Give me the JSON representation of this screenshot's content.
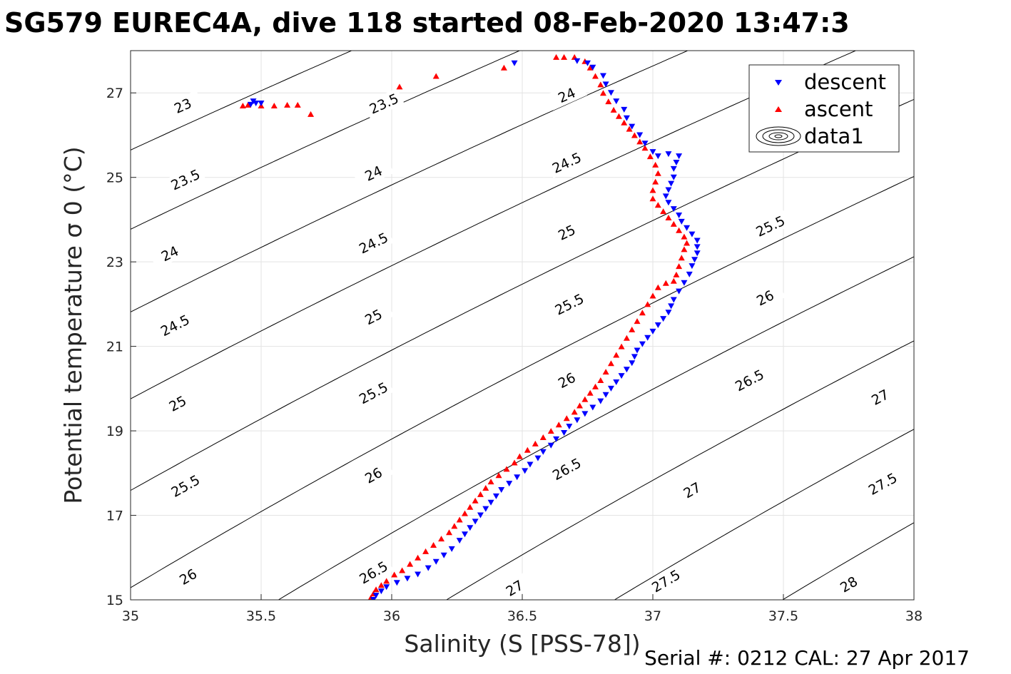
{
  "title": "SG579 EUREC4A, dive 118 started 08-Feb-2020 13:47:3",
  "footer": "Serial #: 0212  CAL: 27 Apr 2017",
  "chart_data": {
    "type": "scatter",
    "xlabel": "Salinity (S [PSS-78])",
    "ylabel": "Potential temperature σ 0 (°C)",
    "xlim": [
      35,
      38
    ],
    "ylim": [
      15,
      28
    ],
    "xticks": [
      35,
      35.5,
      36,
      36.5,
      37,
      37.5,
      38
    ],
    "yticks": [
      15,
      17,
      19,
      21,
      23,
      25,
      27
    ],
    "xtick_labels": [
      "35",
      "35.5",
      "36",
      "36.5",
      "37",
      "37.5",
      "38"
    ],
    "ytick_labels": [
      "15",
      "17",
      "19",
      "21",
      "23",
      "25",
      "27"
    ],
    "grid": true,
    "legend_position": "top-right",
    "legend": [
      "descent",
      "ascent",
      "data1"
    ],
    "colors": {
      "descent": "#0000ff",
      "ascent": "#ff0000",
      "contour": "#000000"
    },
    "contours": {
      "levels": [
        23,
        23.5,
        24,
        24.5,
        25,
        25.5,
        26,
        26.5,
        27,
        27.5,
        28
      ],
      "labels": [
        {
          "text": "23",
          "s": 35.2,
          "t": 26.7
        },
        {
          "text": "23.5",
          "s": 35.21,
          "t": 24.95
        },
        {
          "text": "24",
          "s": 35.15,
          "t": 23.2
        },
        {
          "text": "24.5",
          "s": 35.17,
          "t": 21.5
        },
        {
          "text": "25",
          "s": 35.18,
          "t": 19.65
        },
        {
          "text": "25.5",
          "s": 35.21,
          "t": 17.7
        },
        {
          "text": "26",
          "s": 35.22,
          "t": 15.55
        },
        {
          "text": "23.5",
          "s": 35.97,
          "t": 26.75
        },
        {
          "text": "24",
          "s": 35.93,
          "t": 25.1
        },
        {
          "text": "24.5",
          "s": 35.93,
          "t": 23.45
        },
        {
          "text": "25",
          "s": 35.93,
          "t": 21.7
        },
        {
          "text": "25.5",
          "s": 35.93,
          "t": 19.9
        },
        {
          "text": "26",
          "s": 35.93,
          "t": 17.95
        },
        {
          "text": "26.5",
          "s": 35.93,
          "t": 15.65
        },
        {
          "text": "24",
          "s": 36.67,
          "t": 26.95
        },
        {
          "text": "24.5",
          "s": 36.67,
          "t": 25.35
        },
        {
          "text": "25",
          "s": 36.67,
          "t": 23.7
        },
        {
          "text": "25.5",
          "s": 36.68,
          "t": 22.0
        },
        {
          "text": "26",
          "s": 36.67,
          "t": 20.2
        },
        {
          "text": "26.5",
          "s": 36.67,
          "t": 18.1
        },
        {
          "text": "27",
          "s": 36.47,
          "t": 15.28
        },
        {
          "text": "25.5",
          "s": 37.45,
          "t": 23.85
        },
        {
          "text": "26",
          "s": 37.43,
          "t": 22.15
        },
        {
          "text": "26.5",
          "s": 37.37,
          "t": 20.2
        },
        {
          "text": "27",
          "s": 37.15,
          "t": 17.6
        },
        {
          "text": "27.5",
          "s": 37.05,
          "t": 15.45
        },
        {
          "text": "27",
          "s": 37.87,
          "t": 19.8
        },
        {
          "text": "27.5",
          "s": 37.88,
          "t": 17.75
        },
        {
          "text": "28",
          "s": 37.75,
          "t": 15.37
        }
      ]
    },
    "series": [
      {
        "name": "descent",
        "marker": "triangle-down",
        "points": [
          [
            35.93,
            15.0
          ],
          [
            35.94,
            15.1
          ],
          [
            35.96,
            15.2
          ],
          [
            35.98,
            15.3
          ],
          [
            36.02,
            15.4
          ],
          [
            36.06,
            15.5
          ],
          [
            36.1,
            15.6
          ],
          [
            36.14,
            15.75
          ],
          [
            36.17,
            15.9
          ],
          [
            36.2,
            16.05
          ],
          [
            36.23,
            16.2
          ],
          [
            36.26,
            16.4
          ],
          [
            36.28,
            16.55
          ],
          [
            36.3,
            16.7
          ],
          [
            36.32,
            16.85
          ],
          [
            36.34,
            17.0
          ],
          [
            36.36,
            17.15
          ],
          [
            36.38,
            17.3
          ],
          [
            36.4,
            17.45
          ],
          [
            36.42,
            17.6
          ],
          [
            36.45,
            17.75
          ],
          [
            36.48,
            17.9
          ],
          [
            36.51,
            18.05
          ],
          [
            36.53,
            18.2
          ],
          [
            36.56,
            18.35
          ],
          [
            36.58,
            18.5
          ],
          [
            36.61,
            18.65
          ],
          [
            36.63,
            18.8
          ],
          [
            36.66,
            18.95
          ],
          [
            36.68,
            19.1
          ],
          [
            36.71,
            19.25
          ],
          [
            36.74,
            19.4
          ],
          [
            36.77,
            19.55
          ],
          [
            36.8,
            19.7
          ],
          [
            36.82,
            19.85
          ],
          [
            36.84,
            20.0
          ],
          [
            36.86,
            20.15
          ],
          [
            36.88,
            20.3
          ],
          [
            36.9,
            20.45
          ],
          [
            36.92,
            20.6
          ],
          [
            36.93,
            20.75
          ],
          [
            36.94,
            20.9
          ],
          [
            36.96,
            21.05
          ],
          [
            36.98,
            21.2
          ],
          [
            37.0,
            21.35
          ],
          [
            37.02,
            21.5
          ],
          [
            37.04,
            21.65
          ],
          [
            37.06,
            21.8
          ],
          [
            37.07,
            21.95
          ],
          [
            37.08,
            22.1
          ],
          [
            37.1,
            22.3
          ],
          [
            37.12,
            22.5
          ],
          [
            37.14,
            22.7
          ],
          [
            37.15,
            22.9
          ],
          [
            37.16,
            23.05
          ],
          [
            37.17,
            23.2
          ],
          [
            37.17,
            23.35
          ],
          [
            37.17,
            23.5
          ],
          [
            37.15,
            23.65
          ],
          [
            37.13,
            23.8
          ],
          [
            37.11,
            23.95
          ],
          [
            37.1,
            24.1
          ],
          [
            37.08,
            24.25
          ],
          [
            37.06,
            24.4
          ],
          [
            37.05,
            24.55
          ],
          [
            37.06,
            24.7
          ],
          [
            37.07,
            24.85
          ],
          [
            37.08,
            25.0
          ],
          [
            37.08,
            25.2
          ],
          [
            37.09,
            25.35
          ],
          [
            37.1,
            25.5
          ],
          [
            37.06,
            25.55
          ],
          [
            37.02,
            25.5
          ],
          [
            37.0,
            25.6
          ],
          [
            36.97,
            25.8
          ],
          [
            36.95,
            26.0
          ],
          [
            36.92,
            26.2
          ],
          [
            36.9,
            26.4
          ],
          [
            36.89,
            26.6
          ],
          [
            36.86,
            26.8
          ],
          [
            36.84,
            27.0
          ],
          [
            36.82,
            27.2
          ],
          [
            36.81,
            27.4
          ],
          [
            36.77,
            27.6
          ],
          [
            36.75,
            27.7
          ],
          [
            36.71,
            27.75
          ],
          [
            36.47,
            27.7
          ],
          [
            35.47,
            26.8
          ],
          [
            35.48,
            26.75
          ],
          [
            35.5,
            26.75
          ],
          [
            35.46,
            26.72
          ]
        ]
      },
      {
        "name": "ascent",
        "marker": "triangle-up",
        "points": [
          [
            35.92,
            15.05
          ],
          [
            35.93,
            15.15
          ],
          [
            35.94,
            15.25
          ],
          [
            35.96,
            15.35
          ],
          [
            35.98,
            15.45
          ],
          [
            36.01,
            15.6
          ],
          [
            36.04,
            15.7
          ],
          [
            36.07,
            15.85
          ],
          [
            36.1,
            16.0
          ],
          [
            36.13,
            16.15
          ],
          [
            36.16,
            16.3
          ],
          [
            36.19,
            16.45
          ],
          [
            36.22,
            16.6
          ],
          [
            36.24,
            16.75
          ],
          [
            36.26,
            16.9
          ],
          [
            36.28,
            17.05
          ],
          [
            36.3,
            17.2
          ],
          [
            36.32,
            17.35
          ],
          [
            36.34,
            17.5
          ],
          [
            36.36,
            17.65
          ],
          [
            36.38,
            17.8
          ],
          [
            36.41,
            17.95
          ],
          [
            36.44,
            18.1
          ],
          [
            36.47,
            18.25
          ],
          [
            36.49,
            18.4
          ],
          [
            36.52,
            18.55
          ],
          [
            36.55,
            18.7
          ],
          [
            36.58,
            18.85
          ],
          [
            36.61,
            19.0
          ],
          [
            36.64,
            19.15
          ],
          [
            36.67,
            19.3
          ],
          [
            36.7,
            19.45
          ],
          [
            36.72,
            19.6
          ],
          [
            36.74,
            19.75
          ],
          [
            36.76,
            19.9
          ],
          [
            36.78,
            20.05
          ],
          [
            36.8,
            20.2
          ],
          [
            36.82,
            20.4
          ],
          [
            36.84,
            20.6
          ],
          [
            36.86,
            20.8
          ],
          [
            36.88,
            21.0
          ],
          [
            36.9,
            21.2
          ],
          [
            36.92,
            21.4
          ],
          [
            36.94,
            21.6
          ],
          [
            36.96,
            21.8
          ],
          [
            36.98,
            22.0
          ],
          [
            37.0,
            22.2
          ],
          [
            37.02,
            22.4
          ],
          [
            37.05,
            22.5
          ],
          [
            37.08,
            22.55
          ],
          [
            37.09,
            22.7
          ],
          [
            37.1,
            22.9
          ],
          [
            37.11,
            23.1
          ],
          [
            37.12,
            23.3
          ],
          [
            37.13,
            23.45
          ],
          [
            37.12,
            23.6
          ],
          [
            37.1,
            23.75
          ],
          [
            37.08,
            23.9
          ],
          [
            37.06,
            24.05
          ],
          [
            37.04,
            24.2
          ],
          [
            37.02,
            24.35
          ],
          [
            37.0,
            24.5
          ],
          [
            37.0,
            24.7
          ],
          [
            37.01,
            24.9
          ],
          [
            37.02,
            25.1
          ],
          [
            37.01,
            25.3
          ],
          [
            36.99,
            25.5
          ],
          [
            36.97,
            25.7
          ],
          [
            36.95,
            25.85
          ],
          [
            36.93,
            26.0
          ],
          [
            36.91,
            26.15
          ],
          [
            36.89,
            26.3
          ],
          [
            36.87,
            26.45
          ],
          [
            36.85,
            26.6
          ],
          [
            36.83,
            26.8
          ],
          [
            36.81,
            27.0
          ],
          [
            36.8,
            27.2
          ],
          [
            36.78,
            27.4
          ],
          [
            36.76,
            27.6
          ],
          [
            36.74,
            27.75
          ],
          [
            36.7,
            27.85
          ],
          [
            36.66,
            27.85
          ],
          [
            36.63,
            27.85
          ],
          [
            36.43,
            27.6
          ],
          [
            36.17,
            27.4
          ],
          [
            36.03,
            27.15
          ],
          [
            35.69,
            26.5
          ],
          [
            35.64,
            26.72
          ],
          [
            35.6,
            26.72
          ],
          [
            35.55,
            26.7
          ],
          [
            35.5,
            26.7
          ],
          [
            35.45,
            26.72
          ],
          [
            35.43,
            26.7
          ]
        ]
      }
    ]
  }
}
